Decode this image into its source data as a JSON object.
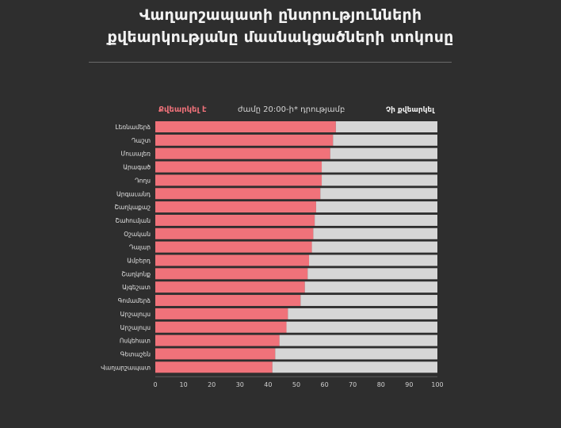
{
  "title": {
    "line1": "Վաղարշապատի ընտրությունների",
    "line2": "քվեարկությանը մասնակցածների տոկոսը"
  },
  "colors": {
    "voted": "#f0727a",
    "not_voted": "#d6d6d6",
    "background": "#2e2e2e"
  },
  "chart_data": {
    "type": "bar",
    "orientation": "horizontal-stacked",
    "legend": {
      "voted": "Քվեարկել է",
      "time_note": "ժամը 20:00-ի* դրությամբ",
      "not_voted": "Չի քվեարկել"
    },
    "categories": [
      "Լեռնամերձ",
      "Դաշտ",
      "Մուսալեռ",
      "Արագած",
      "Դողս",
      "Արգաւանդ",
      "Շաղկաքաշ",
      "Շահումյան",
      "Օշական",
      "Դալար",
      "Ամբերդ",
      "Շաղկոնք",
      "Այգեշատ",
      "Գոմամերձ",
      "Արշալույս",
      "Արշալույս",
      "Ոսկեհատ",
      "Գետաշեն",
      "Վաղարշապատ"
    ],
    "series": [
      {
        "name": "Քվեարկել է",
        "values": [
          64,
          63,
          62,
          59,
          59,
          58.5,
          57,
          56.5,
          56,
          55.5,
          54.5,
          54,
          53,
          51.5,
          47,
          46.5,
          44,
          42.5,
          41.5
        ]
      },
      {
        "name": "Չի քվեարկել",
        "values": [
          36,
          37,
          38,
          41,
          41,
          41.5,
          43,
          43.5,
          44,
          44.5,
          45.5,
          46,
          47,
          48.5,
          53,
          53.5,
          56,
          57.5,
          58.5
        ]
      }
    ],
    "xlim": [
      0,
      100
    ],
    "xticks": [
      0,
      10,
      20,
      30,
      40,
      50,
      60,
      70,
      80,
      90,
      100
    ]
  }
}
